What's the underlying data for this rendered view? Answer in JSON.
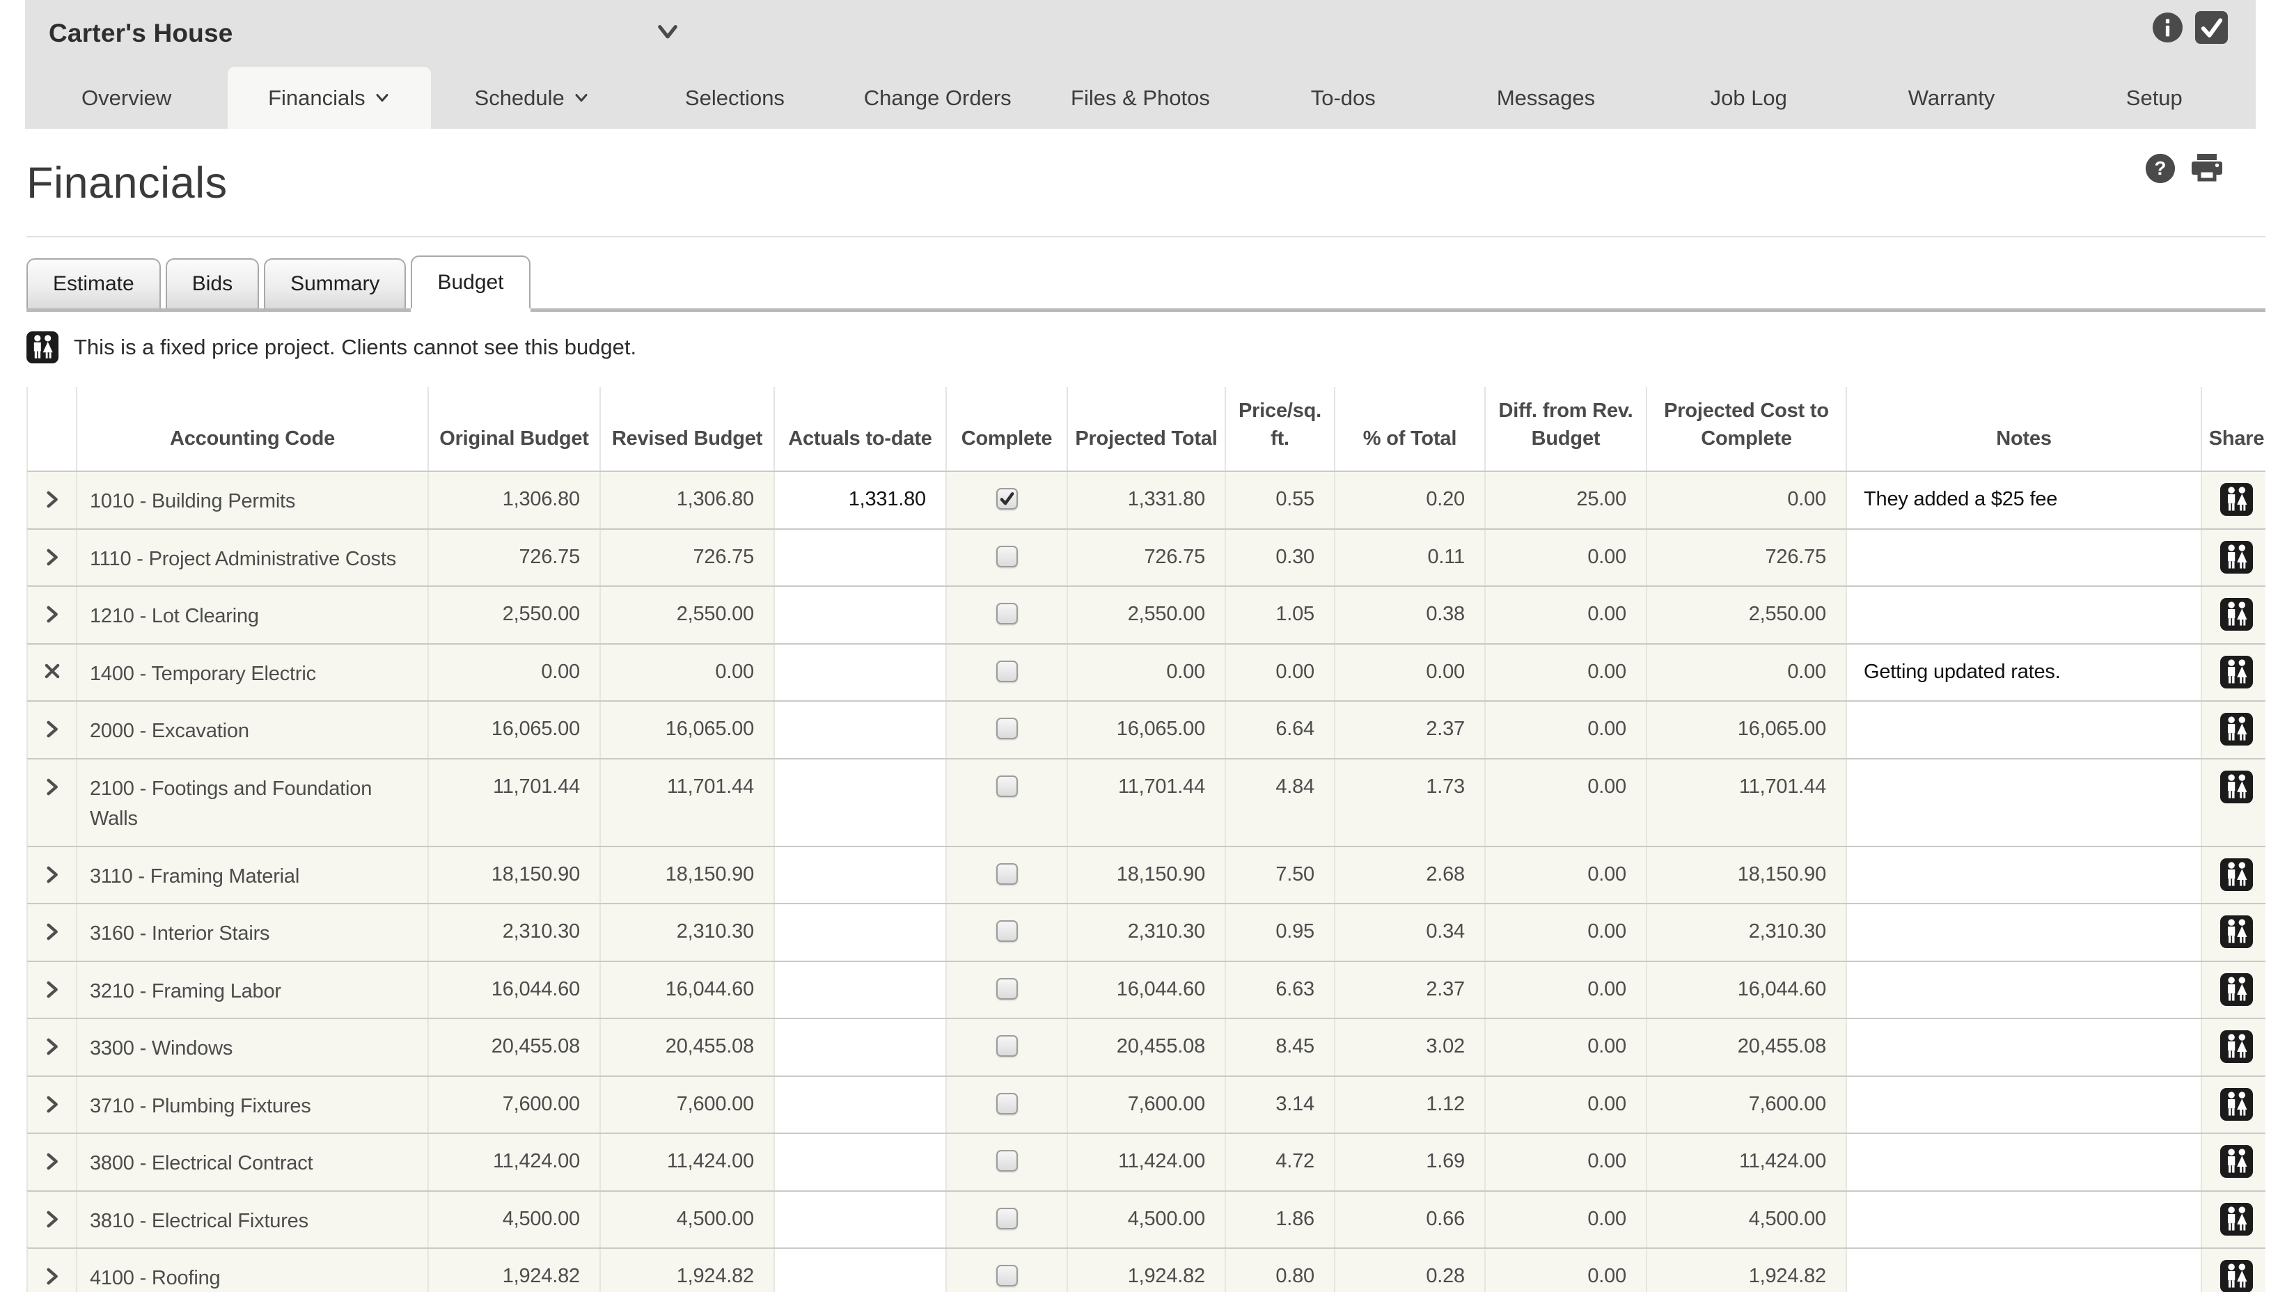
{
  "header": {
    "job_name": "Carter's House",
    "right_icons": [
      "info-icon",
      "selected-check-icon"
    ]
  },
  "nav": {
    "items": [
      {
        "label": "Overview",
        "slug": "overview"
      },
      {
        "label": "Financials",
        "slug": "financials",
        "caret": true,
        "active": true
      },
      {
        "label": "Schedule",
        "slug": "schedule",
        "caret": true
      },
      {
        "label": "Selections",
        "slug": "selections"
      },
      {
        "label": "Change Orders",
        "slug": "change-orders"
      },
      {
        "label": "Files & Photos",
        "slug": "files-photos"
      },
      {
        "label": "To-dos",
        "slug": "to-dos"
      },
      {
        "label": "Messages",
        "slug": "messages"
      },
      {
        "label": "Job Log",
        "slug": "job-log"
      },
      {
        "label": "Warranty",
        "slug": "warranty"
      },
      {
        "label": "Setup",
        "slug": "setup"
      }
    ]
  },
  "page": {
    "title": "Financials",
    "head_icons": [
      "help-icon",
      "print-icon"
    ]
  },
  "subtabs": {
    "items": [
      {
        "label": "Estimate",
        "slug": "estimate"
      },
      {
        "label": "Bids",
        "slug": "bids"
      },
      {
        "label": "Summary",
        "slug": "summary"
      },
      {
        "label": "Budget",
        "slug": "budget",
        "active": true
      }
    ]
  },
  "notice": {
    "text": "This is a fixed price project. Clients cannot see this budget."
  },
  "table": {
    "columns": [
      "",
      "Accounting Code",
      "Original Budget",
      "Revised Budget",
      "Actuals to-date",
      "Complete",
      "Projected Total",
      "Price/sq. ft.",
      "% of Total",
      "Diff. from Rev. Budget",
      "Projected Cost to Complete",
      "Notes",
      "Share"
    ],
    "rows": [
      {
        "expand": "chevron",
        "code": "1010 - Building Permits",
        "original": "1,306.80",
        "revised": "1,306.80",
        "actuals": "1,331.80",
        "complete": true,
        "projected": "1,331.80",
        "price_sqft": "0.55",
        "pct_total": "0.20",
        "diff": "25.00",
        "cost_to_complete": "0.00",
        "notes": "They added a $25 fee"
      },
      {
        "expand": "chevron",
        "code": "1110 - Project Administrative Costs",
        "original": "726.75",
        "revised": "726.75",
        "actuals": "",
        "complete": false,
        "projected": "726.75",
        "price_sqft": "0.30",
        "pct_total": "0.11",
        "diff": "0.00",
        "cost_to_complete": "726.75",
        "notes": ""
      },
      {
        "expand": "chevron",
        "code": "1210 - Lot Clearing",
        "original": "2,550.00",
        "revised": "2,550.00",
        "actuals": "",
        "complete": false,
        "projected": "2,550.00",
        "price_sqft": "1.05",
        "pct_total": "0.38",
        "diff": "0.00",
        "cost_to_complete": "2,550.00",
        "notes": ""
      },
      {
        "expand": "remove",
        "code": "1400 - Temporary Electric",
        "original": "0.00",
        "revised": "0.00",
        "actuals": "",
        "complete": false,
        "projected": "0.00",
        "price_sqft": "0.00",
        "pct_total": "0.00",
        "diff": "0.00",
        "cost_to_complete": "0.00",
        "notes": "Getting updated rates."
      },
      {
        "expand": "chevron",
        "code": "2000 - Excavation",
        "original": "16,065.00",
        "revised": "16,065.00",
        "actuals": "",
        "complete": false,
        "projected": "16,065.00",
        "price_sqft": "6.64",
        "pct_total": "2.37",
        "diff": "0.00",
        "cost_to_complete": "16,065.00",
        "notes": ""
      },
      {
        "expand": "chevron",
        "code": "2100 - Footings and Foundation Walls",
        "original": "11,701.44",
        "revised": "11,701.44",
        "actuals": "",
        "complete": false,
        "projected": "11,701.44",
        "price_sqft": "4.84",
        "pct_total": "1.73",
        "diff": "0.00",
        "cost_to_complete": "11,701.44",
        "notes": ""
      },
      {
        "expand": "chevron",
        "code": "3110 - Framing Material",
        "original": "18,150.90",
        "revised": "18,150.90",
        "actuals": "",
        "complete": false,
        "projected": "18,150.90",
        "price_sqft": "7.50",
        "pct_total": "2.68",
        "diff": "0.00",
        "cost_to_complete": "18,150.90",
        "notes": ""
      },
      {
        "expand": "chevron",
        "code": "3160 - Interior Stairs",
        "original": "2,310.30",
        "revised": "2,310.30",
        "actuals": "",
        "complete": false,
        "projected": "2,310.30",
        "price_sqft": "0.95",
        "pct_total": "0.34",
        "diff": "0.00",
        "cost_to_complete": "2,310.30",
        "notes": ""
      },
      {
        "expand": "chevron",
        "code": "3210 - Framing Labor",
        "original": "16,044.60",
        "revised": "16,044.60",
        "actuals": "",
        "complete": false,
        "projected": "16,044.60",
        "price_sqft": "6.63",
        "pct_total": "2.37",
        "diff": "0.00",
        "cost_to_complete": "16,044.60",
        "notes": ""
      },
      {
        "expand": "chevron",
        "code": "3300 - Windows",
        "original": "20,455.08",
        "revised": "20,455.08",
        "actuals": "",
        "complete": false,
        "projected": "20,455.08",
        "price_sqft": "8.45",
        "pct_total": "3.02",
        "diff": "0.00",
        "cost_to_complete": "20,455.08",
        "notes": ""
      },
      {
        "expand": "chevron",
        "code": "3710 - Plumbing Fixtures",
        "original": "7,600.00",
        "revised": "7,600.00",
        "actuals": "",
        "complete": false,
        "projected": "7,600.00",
        "price_sqft": "3.14",
        "pct_total": "1.12",
        "diff": "0.00",
        "cost_to_complete": "7,600.00",
        "notes": ""
      },
      {
        "expand": "chevron",
        "code": "3800 - Electrical Contract",
        "original": "11,424.00",
        "revised": "11,424.00",
        "actuals": "",
        "complete": false,
        "projected": "11,424.00",
        "price_sqft": "4.72",
        "pct_total": "1.69",
        "diff": "0.00",
        "cost_to_complete": "11,424.00",
        "notes": ""
      },
      {
        "expand": "chevron",
        "code": "3810 - Electrical Fixtures",
        "original": "4,500.00",
        "revised": "4,500.00",
        "actuals": "",
        "complete": false,
        "projected": "4,500.00",
        "price_sqft": "1.86",
        "pct_total": "0.66",
        "diff": "0.00",
        "cost_to_complete": "4,500.00",
        "notes": ""
      },
      {
        "expand": "chevron",
        "code": "4100 - Roofing",
        "original": "1,924.82",
        "revised": "1,924.82",
        "actuals": "",
        "complete": false,
        "projected": "1,924.82",
        "price_sqft": "0.80",
        "pct_total": "0.28",
        "diff": "0.00",
        "cost_to_complete": "1,924.82",
        "notes": ""
      }
    ]
  },
  "colors": {
    "topbar_bg": "#e2e2e2",
    "row_bg": "#f7f7f0",
    "icon_dark": "#4a4a4a",
    "border_row": "#c9c9c5"
  }
}
